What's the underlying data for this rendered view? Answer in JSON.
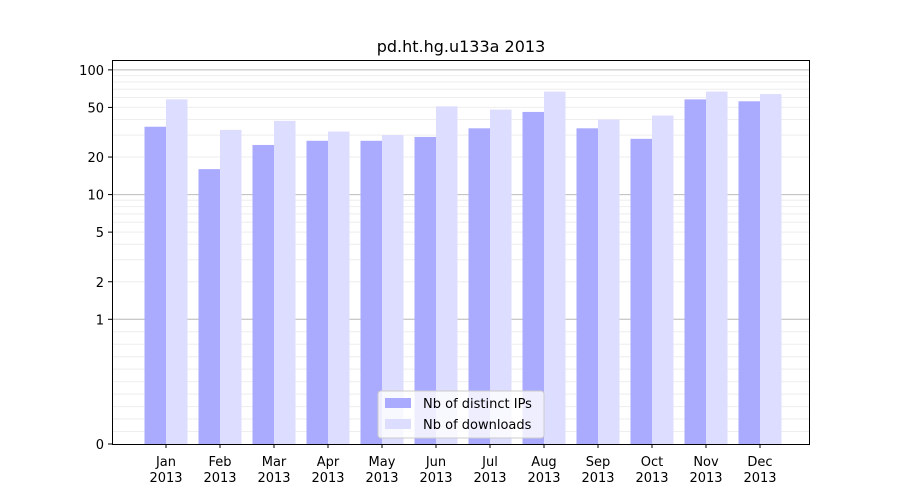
{
  "chart_data": {
    "type": "bar",
    "title": "pd.ht.hg.u133a 2013",
    "xlabel": "",
    "ylabel": "",
    "yscale": "symlog",
    "ylim": [
      0,
      120
    ],
    "yticks": [
      0,
      1,
      2,
      5,
      10,
      20,
      50,
      100
    ],
    "grid": true,
    "legend_position": "bottom-center",
    "categories": [
      [
        "Jan",
        "2013"
      ],
      [
        "Feb",
        "2013"
      ],
      [
        "Mar",
        "2013"
      ],
      [
        "Apr",
        "2013"
      ],
      [
        "May",
        "2013"
      ],
      [
        "Jun",
        "2013"
      ],
      [
        "Jul",
        "2013"
      ],
      [
        "Aug",
        "2013"
      ],
      [
        "Sep",
        "2013"
      ],
      [
        "Oct",
        "2013"
      ],
      [
        "Nov",
        "2013"
      ],
      [
        "Dec",
        "2013"
      ]
    ],
    "series": [
      {
        "name": "Nb of distinct IPs",
        "color": "#aaaaff",
        "values": [
          35,
          16,
          25,
          27,
          27,
          29,
          34,
          46,
          34,
          28,
          58,
          56
        ]
      },
      {
        "name": "Nb of downloads",
        "color": "#ddddff",
        "values": [
          58,
          33,
          39,
          32,
          30,
          51,
          48,
          67,
          40,
          43,
          67,
          64
        ]
      }
    ]
  }
}
